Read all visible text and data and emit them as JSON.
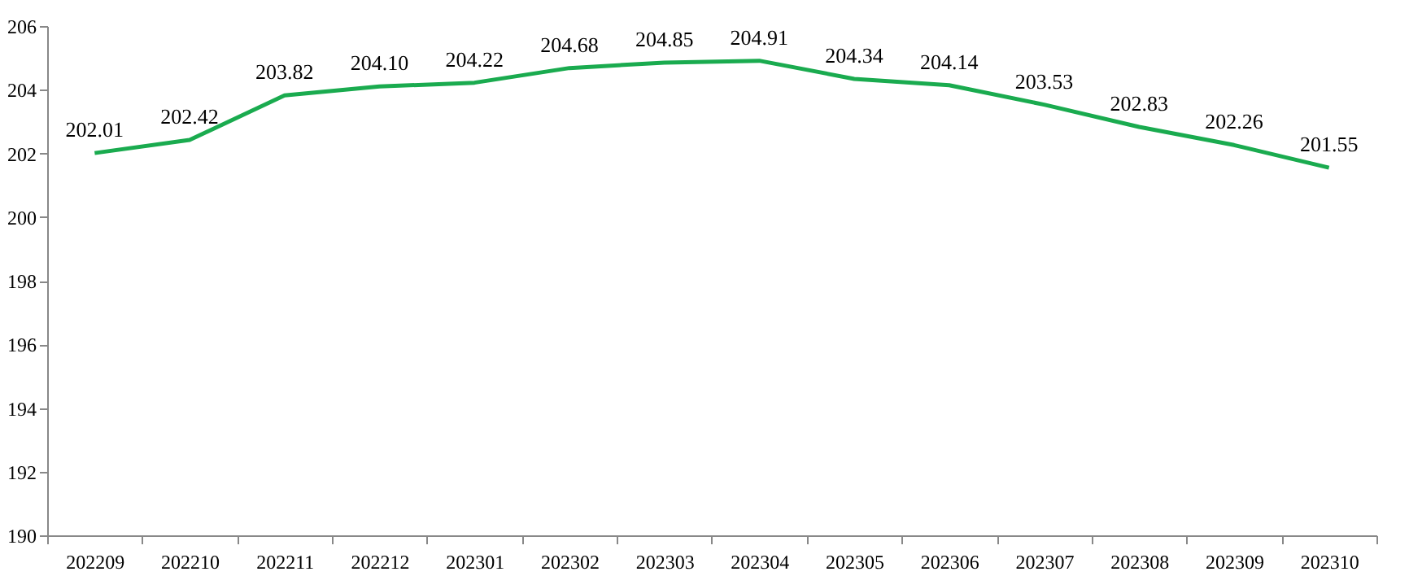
{
  "chart_data": {
    "type": "line",
    "categories": [
      "202209",
      "202210",
      "202211",
      "202212",
      "202301",
      "202302",
      "202303",
      "202304",
      "202305",
      "202306",
      "202307",
      "202308",
      "202309",
      "202310"
    ],
    "series": [
      {
        "color": "#1aab4f",
        "values": [
          202.01,
          202.42,
          203.82,
          204.1,
          204.22,
          204.68,
          204.85,
          204.91,
          204.34,
          204.14,
          203.53,
          202.83,
          202.26,
          201.55
        ],
        "value_labels": [
          "202.01",
          "202.42",
          "203.82",
          "204.10",
          "204.22",
          "204.68",
          "204.85",
          "204.91",
          "204.34",
          "204.14",
          "203.53",
          "202.83",
          "202.26",
          "201.55"
        ]
      }
    ],
    "ylim": [
      190,
      206
    ],
    "yticks": [
      190,
      192,
      194,
      196,
      198,
      200,
      202,
      204,
      206
    ],
    "marker": "none",
    "line_style": "solid"
  }
}
